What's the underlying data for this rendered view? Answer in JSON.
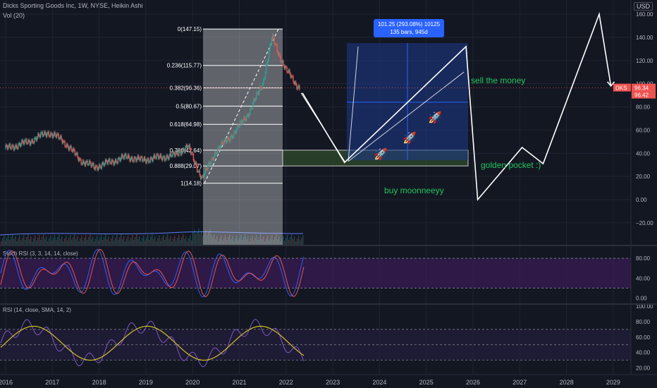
{
  "header": {
    "title": "Dicks Sporting Goods Inc, 1W, NYSE, Heikin Ashi",
    "volume_label": "Vol (20)",
    "currency": "USD"
  },
  "colors": {
    "background": "#131722",
    "grid": "#1f2430",
    "text": "#b2b5be",
    "up": "#26a69a",
    "down": "#ef5350",
    "fib_zone": "#ffffff",
    "box": "#1e3a8a",
    "box_line": "#2962ff",
    "golden_pocket": "#2e4a2b",
    "annotation": "#22c55e",
    "stoch_k": "#2962ff",
    "stoch_d": "#ef5350",
    "rsi": "#7e57c2",
    "rsi_ma": "#d4c02a",
    "price_tag": "#ef5350"
  },
  "chart_data": [
    {
      "type": "candlestick",
      "title": "Dicks Sporting Goods Inc, 1W, NYSE, Heikin Ashi",
      "price_axis_ticks": [
        "160.00",
        "140.00",
        "120.00",
        "100.00",
        "80.00",
        "60.00",
        "40.00",
        "20.00",
        "0.00",
        "−20.00"
      ],
      "ylim": [
        -28,
        166
      ],
      "time_axis_ticks": [
        "2016",
        "2017",
        "2018",
        "2019",
        "2020",
        "2021",
        "2022",
        "2023",
        "2024",
        "2025",
        "2026",
        "2027",
        "2028",
        "2029"
      ],
      "price_series_approx": [
        {
          "x": 2016.0,
          "y": 44
        },
        {
          "x": 2016.5,
          "y": 50
        },
        {
          "x": 2016.9,
          "y": 58
        },
        {
          "x": 2017.2,
          "y": 52
        },
        {
          "x": 2017.6,
          "y": 34
        },
        {
          "x": 2017.9,
          "y": 28
        },
        {
          "x": 2018.2,
          "y": 32
        },
        {
          "x": 2018.6,
          "y": 37
        },
        {
          "x": 2018.9,
          "y": 34
        },
        {
          "x": 2019.2,
          "y": 36
        },
        {
          "x": 2019.6,
          "y": 38
        },
        {
          "x": 2019.9,
          "y": 46
        },
        {
          "x": 2020.2,
          "y": 18
        },
        {
          "x": 2020.5,
          "y": 42
        },
        {
          "x": 2020.9,
          "y": 58
        },
        {
          "x": 2021.2,
          "y": 75
        },
        {
          "x": 2021.5,
          "y": 100
        },
        {
          "x": 2021.7,
          "y": 140
        },
        {
          "x": 2021.85,
          "y": 125
        },
        {
          "x": 2022.0,
          "y": 112
        },
        {
          "x": 2022.2,
          "y": 100
        },
        {
          "x": 2022.3,
          "y": 96.34
        }
      ],
      "fibonacci": [
        {
          "label": "0(147.15)",
          "value": 147.15
        },
        {
          "label": "0.236(115.77)",
          "value": 115.77
        },
        {
          "label": "0.382(96.36)",
          "value": 96.36
        },
        {
          "label": "0.5(80.67)",
          "value": 80.67
        },
        {
          "label": "0.618(64.98)",
          "value": 64.98
        },
        {
          "label": "0.786(42.64)",
          "value": 42.64
        },
        {
          "label": "0.888(29.07)",
          "value": 29.07
        },
        {
          "label": "1(14.18)",
          "value": 14.18
        }
      ],
      "price_tags": [
        {
          "label": "DKS",
          "value": "96.34"
        },
        {
          "value": "96.42"
        }
      ],
      "measure_box": {
        "line1": "101.25 (293.08%) 10125",
        "line2": "135 bars, 945d"
      },
      "annotations": [
        "sell the money",
        "golden pocket :)",
        "buy moonneeyy"
      ],
      "projection_path": [
        {
          "x": 2022.35,
          "y": 92
        },
        {
          "x": 2023.25,
          "y": 32
        },
        {
          "x": 2025.85,
          "y": 132
        },
        {
          "x": 2026.1,
          "y": 0
        },
        {
          "x": 2027.05,
          "y": 45
        },
        {
          "x": 2027.5,
          "y": 31
        },
        {
          "x": 2028.7,
          "y": 160
        },
        {
          "x": 2028.95,
          "y": 98
        }
      ]
    },
    {
      "type": "line",
      "title": "Stoch RSI (3, 3, 14, 14, close)",
      "axis_ticks": [
        "80.00",
        "40.00",
        "0.00"
      ],
      "ylim": [
        -5,
        100
      ]
    },
    {
      "type": "line",
      "title": "RSI (14, close, SMA, 14, 2)",
      "axis_ticks": [
        "100.00",
        "80.00",
        "60.00",
        "40.00",
        "20.00"
      ],
      "ylim": [
        15,
        100
      ]
    }
  ]
}
